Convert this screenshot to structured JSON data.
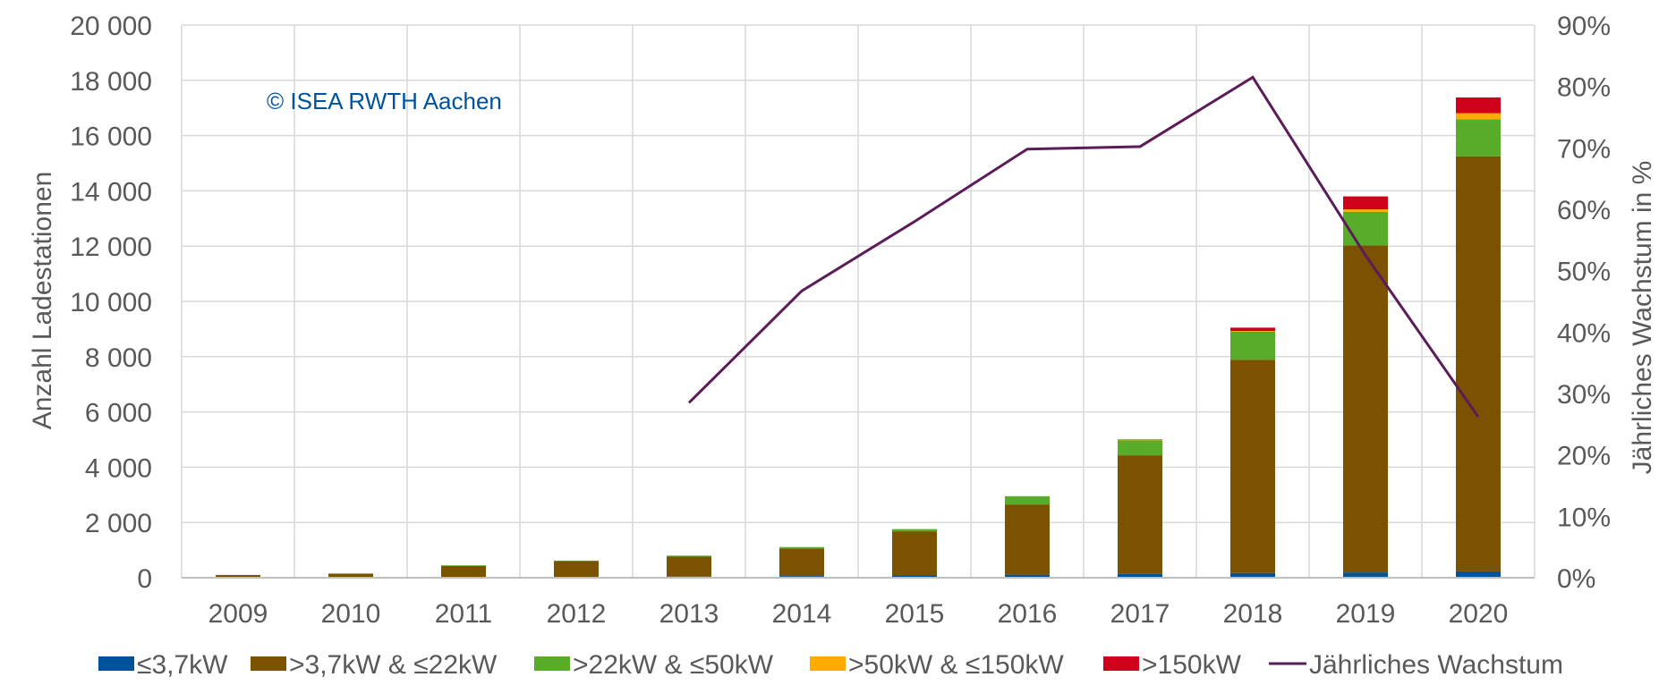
{
  "chart_data": {
    "type": "bar",
    "stacked": true,
    "categories": [
      "2009",
      "2010",
      "2011",
      "2012",
      "2013",
      "2014",
      "2015",
      "2016",
      "2017",
      "2018",
      "2019",
      "2020"
    ],
    "series": [
      {
        "name": "≤3,7kW",
        "color": "#00539b",
        "values": [
          0,
          0,
          10,
          20,
          40,
          60,
          80,
          110,
          140,
          170,
          190,
          230
        ]
      },
      {
        "name": ">3,7kW & ≤22kW",
        "color": "#7a5200",
        "values": [
          100,
          150,
          420,
          580,
          720,
          1000,
          1600,
          2540,
          4290,
          7720,
          11840,
          15020
        ]
      },
      {
        "name": ">22kW & ≤50kW",
        "color": "#58ac2a",
        "values": [
          0,
          0,
          20,
          20,
          40,
          50,
          80,
          300,
          550,
          1020,
          1210,
          1340
        ]
      },
      {
        "name": ">50kW & ≤150kW",
        "color": "#ffab00",
        "values": [
          0,
          0,
          0,
          0,
          0,
          0,
          0,
          0,
          10,
          20,
          90,
          220
        ]
      },
      {
        "name": ">150kW",
        "color": "#d0021b",
        "values": [
          0,
          0,
          0,
          0,
          0,
          0,
          0,
          0,
          10,
          120,
          470,
          570
        ]
      }
    ],
    "line_series": {
      "name": "Jährliches Wachstum",
      "color": "#5b1c58",
      "axis": "right",
      "values": [
        null,
        null,
        null,
        null,
        28.5,
        46.7,
        58,
        69.8,
        70.2,
        81.5,
        52.5,
        26.2
      ]
    },
    "ylabel": "Anzahl Ladestationen",
    "y2label": "Jährliches Wachstum in %",
    "ylim": [
      0,
      20000
    ],
    "y2lim": [
      0,
      90
    ],
    "yticks": [
      "0",
      "2 000",
      "4 000",
      "6 000",
      "8 000",
      "10 000",
      "12 000",
      "14 000",
      "16 000",
      "18 000",
      "20 000"
    ],
    "y2ticks": [
      "0%",
      "10%",
      "20%",
      "30%",
      "40%",
      "50%",
      "60%",
      "70%",
      "80%",
      "90%"
    ],
    "annotation": "© ISEA RWTH Aachen",
    "annotation_color": "#00539b",
    "grid": true,
    "legend_position": "bottom"
  }
}
